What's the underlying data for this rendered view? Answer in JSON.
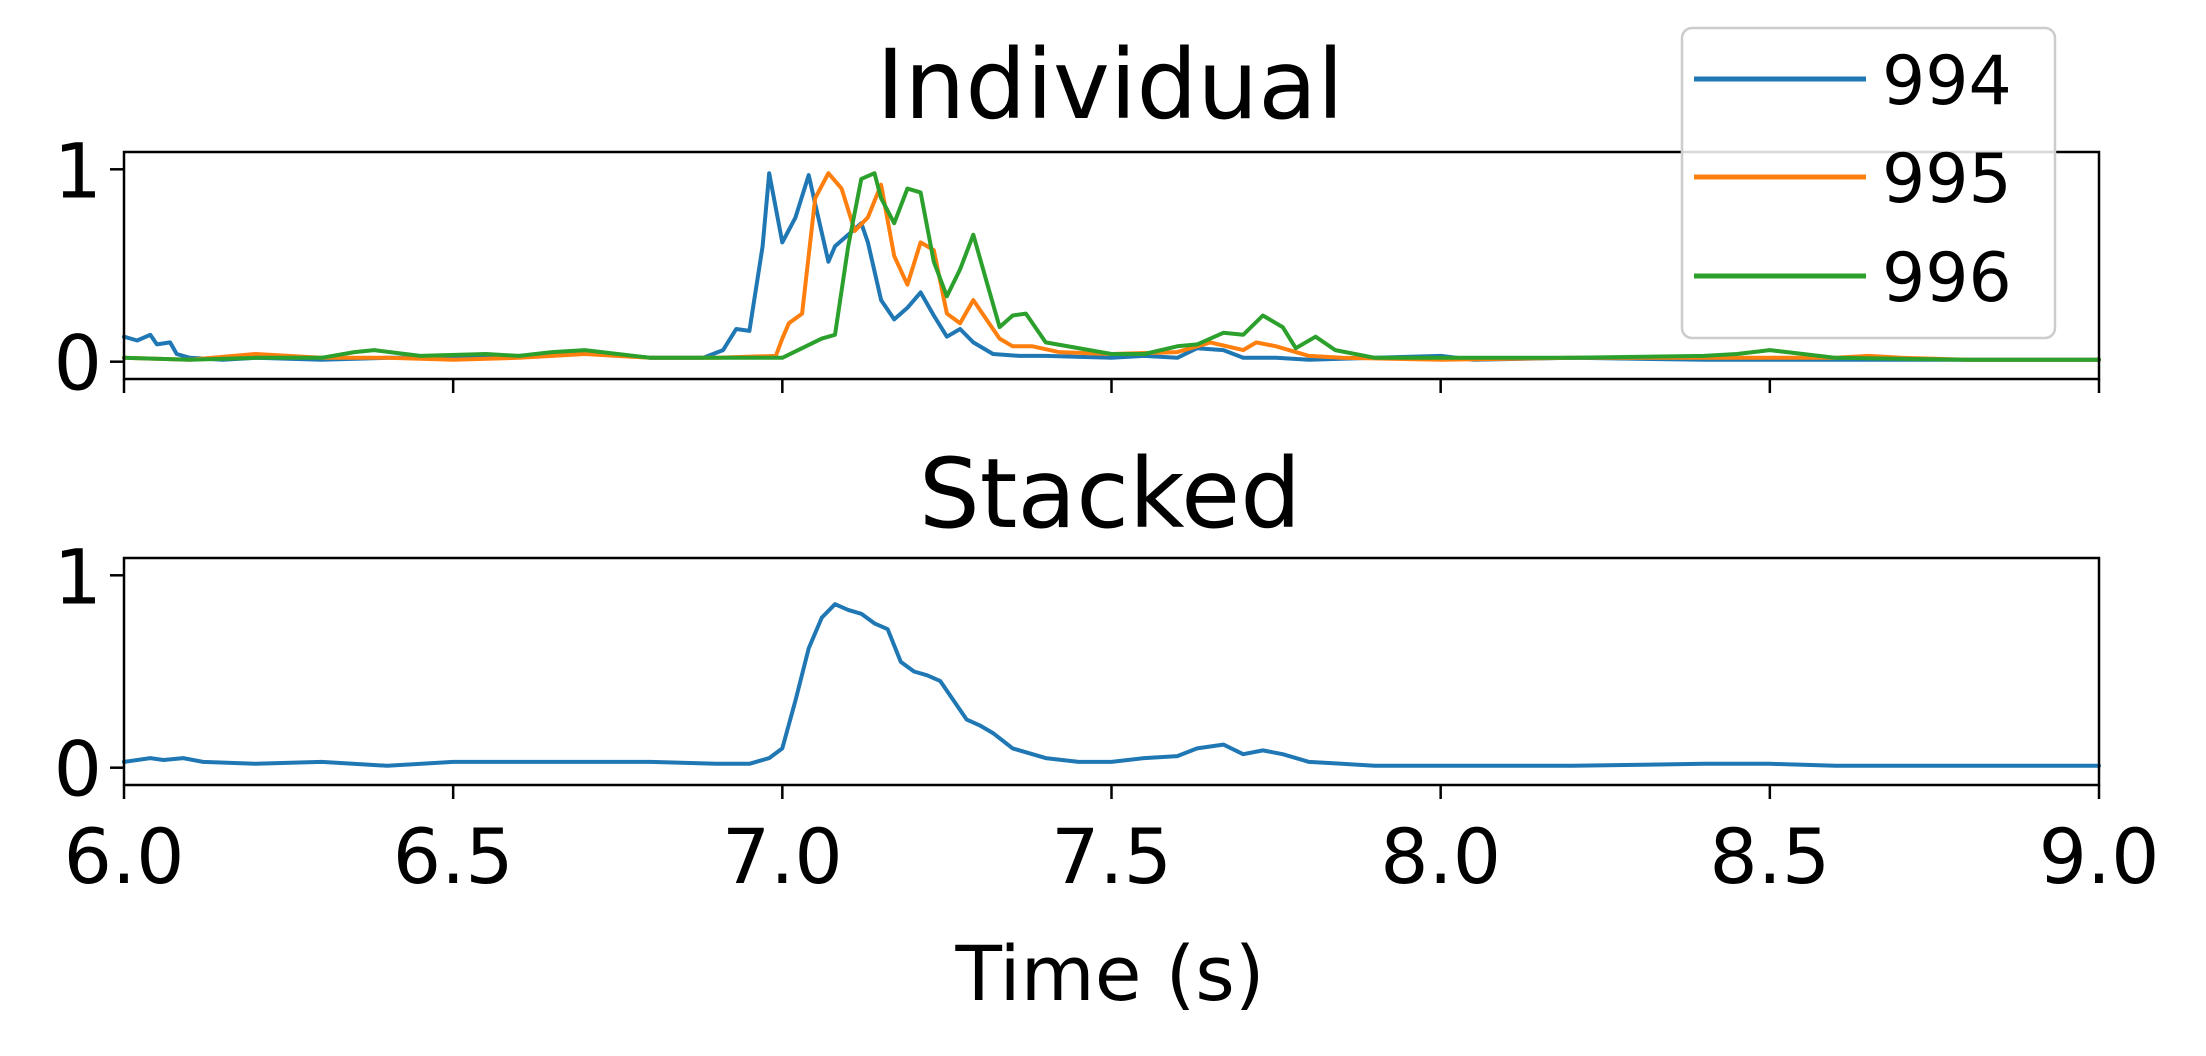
{
  "chart_data": [
    {
      "type": "line",
      "title": "Individual",
      "xlabel": "",
      "ylabel": "",
      "xlim": [
        6.0,
        9.0
      ],
      "ylim": [
        -0.09,
        1.09
      ],
      "yticks": [
        0,
        1
      ],
      "ytick_labels": [
        "0",
        "1"
      ],
      "xticks": [
        6.0,
        6.5,
        7.0,
        7.5,
        8.0,
        8.5,
        9.0
      ],
      "xtick_labels": [],
      "legend": {
        "placement": "top-right",
        "entries": [
          "994",
          "995",
          "996"
        ]
      },
      "grid": false,
      "series": [
        {
          "name": "994",
          "color": "#1f77b4",
          "x": [
            6.0,
            6.02,
            6.04,
            6.05,
            6.07,
            6.08,
            6.1,
            6.15,
            6.2,
            6.3,
            6.4,
            6.5,
            6.6,
            6.7,
            6.8,
            6.88,
            6.91,
            6.93,
            6.95,
            6.97,
            6.98,
            7.0,
            7.02,
            7.04,
            7.05,
            7.07,
            7.08,
            7.1,
            7.12,
            7.13,
            7.15,
            7.17,
            7.19,
            7.21,
            7.23,
            7.25,
            7.27,
            7.29,
            7.32,
            7.36,
            7.4,
            7.5,
            7.55,
            7.6,
            7.63,
            7.67,
            7.7,
            7.75,
            7.8,
            7.9,
            8.0,
            8.05,
            8.2,
            8.4,
            8.6,
            8.8,
            9.0
          ],
          "y": [
            0.13,
            0.11,
            0.14,
            0.09,
            0.1,
            0.04,
            0.02,
            0.01,
            0.02,
            0.01,
            0.02,
            0.02,
            0.03,
            0.05,
            0.02,
            0.02,
            0.06,
            0.17,
            0.16,
            0.6,
            0.98,
            0.62,
            0.75,
            0.97,
            0.82,
            0.52,
            0.6,
            0.66,
            0.72,
            0.62,
            0.32,
            0.22,
            0.28,
            0.36,
            0.24,
            0.13,
            0.17,
            0.1,
            0.04,
            0.03,
            0.03,
            0.02,
            0.03,
            0.02,
            0.07,
            0.06,
            0.02,
            0.02,
            0.01,
            0.02,
            0.03,
            0.01,
            0.02,
            0.01,
            0.01,
            0.01,
            0.01
          ]
        },
        {
          "name": "995",
          "color": "#ff7f0e",
          "x": [
            6.0,
            6.1,
            6.2,
            6.25,
            6.3,
            6.4,
            6.5,
            6.6,
            6.7,
            6.8,
            6.9,
            6.99,
            7.0,
            7.01,
            7.03,
            7.05,
            7.07,
            7.09,
            7.11,
            7.13,
            7.15,
            7.17,
            7.19,
            7.21,
            7.23,
            7.25,
            7.27,
            7.29,
            7.31,
            7.33,
            7.35,
            7.38,
            7.42,
            7.5,
            7.6,
            7.65,
            7.7,
            7.72,
            7.75,
            7.8,
            7.85,
            8.0,
            8.2,
            8.4,
            8.6,
            8.65,
            8.7,
            8.8,
            9.0
          ],
          "y": [
            0.02,
            0.01,
            0.04,
            0.03,
            0.02,
            0.02,
            0.01,
            0.02,
            0.04,
            0.02,
            0.02,
            0.03,
            0.12,
            0.2,
            0.25,
            0.85,
            0.98,
            0.9,
            0.68,
            0.75,
            0.92,
            0.55,
            0.4,
            0.62,
            0.58,
            0.25,
            0.2,
            0.32,
            0.22,
            0.12,
            0.08,
            0.08,
            0.05,
            0.04,
            0.05,
            0.1,
            0.06,
            0.1,
            0.08,
            0.03,
            0.02,
            0.01,
            0.02,
            0.02,
            0.02,
            0.03,
            0.02,
            0.01,
            0.01
          ]
        },
        {
          "name": "996",
          "color": "#2ca02c",
          "x": [
            6.0,
            6.1,
            6.2,
            6.3,
            6.35,
            6.38,
            6.45,
            6.55,
            6.6,
            6.65,
            6.7,
            6.8,
            6.9,
            7.0,
            7.06,
            7.08,
            7.1,
            7.12,
            7.14,
            7.15,
            7.17,
            7.19,
            7.21,
            7.23,
            7.25,
            7.27,
            7.29,
            7.31,
            7.33,
            7.35,
            7.37,
            7.4,
            7.5,
            7.55,
            7.6,
            7.63,
            7.67,
            7.7,
            7.73,
            7.76,
            7.78,
            7.81,
            7.84,
            7.9,
            8.0,
            8.2,
            8.4,
            8.45,
            8.5,
            8.6,
            8.8,
            9.0
          ],
          "y": [
            0.02,
            0.01,
            0.02,
            0.02,
            0.05,
            0.06,
            0.03,
            0.04,
            0.03,
            0.05,
            0.06,
            0.02,
            0.02,
            0.02,
            0.12,
            0.14,
            0.6,
            0.95,
            0.98,
            0.85,
            0.72,
            0.9,
            0.88,
            0.52,
            0.34,
            0.48,
            0.66,
            0.42,
            0.18,
            0.24,
            0.25,
            0.1,
            0.04,
            0.04,
            0.08,
            0.09,
            0.15,
            0.14,
            0.24,
            0.18,
            0.07,
            0.13,
            0.06,
            0.02,
            0.02,
            0.02,
            0.03,
            0.04,
            0.06,
            0.02,
            0.01,
            0.01
          ]
        }
      ]
    },
    {
      "type": "line",
      "title": "Stacked",
      "xlabel": "Time (s)",
      "ylabel": "",
      "xlim": [
        6.0,
        9.0
      ],
      "ylim": [
        -0.09,
        1.09
      ],
      "yticks": [
        0,
        1
      ],
      "ytick_labels": [
        "0",
        "1"
      ],
      "xticks": [
        6.0,
        6.5,
        7.0,
        7.5,
        8.0,
        8.5,
        9.0
      ],
      "xtick_labels": [
        "6.0",
        "6.5",
        "7.0",
        "7.5",
        "8.0",
        "8.5",
        "9.0"
      ],
      "grid": false,
      "series": [
        {
          "color": "#1f77b4",
          "x": [
            6.0,
            6.04,
            6.06,
            6.09,
            6.12,
            6.2,
            6.3,
            6.4,
            6.5,
            6.6,
            6.7,
            6.8,
            6.9,
            6.95,
            6.98,
            7.0,
            7.02,
            7.04,
            7.06,
            7.08,
            7.1,
            7.12,
            7.14,
            7.16,
            7.18,
            7.2,
            7.22,
            7.24,
            7.26,
            7.28,
            7.3,
            7.32,
            7.35,
            7.4,
            7.45,
            7.5,
            7.55,
            7.6,
            7.63,
            7.67,
            7.7,
            7.73,
            7.76,
            7.8,
            7.85,
            7.9,
            8.0,
            8.2,
            8.4,
            8.5,
            8.6,
            8.8,
            9.0
          ],
          "y": [
            0.03,
            0.05,
            0.04,
            0.05,
            0.03,
            0.02,
            0.03,
            0.01,
            0.03,
            0.03,
            0.03,
            0.03,
            0.02,
            0.02,
            0.05,
            0.1,
            0.35,
            0.62,
            0.78,
            0.85,
            0.82,
            0.8,
            0.75,
            0.72,
            0.55,
            0.5,
            0.48,
            0.45,
            0.35,
            0.25,
            0.22,
            0.18,
            0.1,
            0.05,
            0.03,
            0.03,
            0.05,
            0.06,
            0.1,
            0.12,
            0.07,
            0.09,
            0.07,
            0.03,
            0.02,
            0.01,
            0.01,
            0.01,
            0.02,
            0.02,
            0.01,
            0.01,
            0.01
          ]
        }
      ]
    }
  ]
}
